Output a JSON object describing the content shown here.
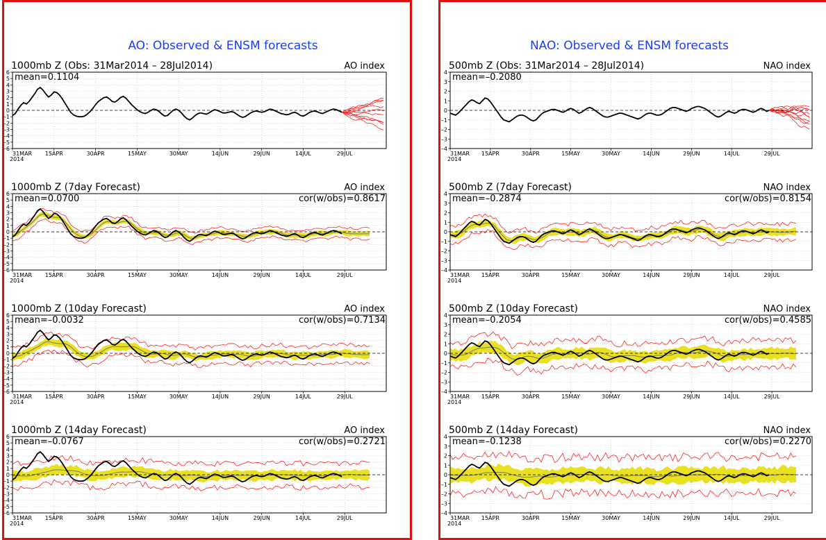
{
  "panels": [
    {
      "id": "ao",
      "title": "AO: Observed & ENSM forecasts",
      "y_ticks": [
        6,
        5,
        4,
        3,
        2,
        1,
        0,
        -1,
        -2,
        -3,
        -4,
        -5,
        -6
      ],
      "subplots": [
        {
          "label": "1000mb Z (Obs: 31Mar2014 – 28Jul2014)",
          "index": "AO index",
          "mean": "mean=0.1104",
          "cor": "",
          "kind": "obs"
        },
        {
          "label": "1000mb Z (7day Forecast)",
          "index": "AO index",
          "mean": "mean=0.0700",
          "cor": "cor(w/obs)=0.8617",
          "kind": "fc7"
        },
        {
          "label": "1000mb Z (10day Forecast)",
          "index": "AO index",
          "mean": "mean=–0.0032",
          "cor": "cor(w/obs)=0.7134",
          "kind": "fc10"
        },
        {
          "label": "1000mb Z (14day Forecast)",
          "index": "AO index",
          "mean": "mean=–0.0767",
          "cor": "cor(w/obs)=0.2721",
          "kind": "fc14"
        }
      ]
    },
    {
      "id": "nao",
      "title": "NAO: Observed & ENSM forecasts",
      "y_ticks": [
        4,
        3,
        2,
        1,
        0,
        -1,
        -2,
        -3,
        -4
      ],
      "subplots": [
        {
          "label": "500mb Z (Obs: 31Mar2014 – 28Jul2014)",
          "index": "NAO index",
          "mean": "mean=–0.2080",
          "cor": "",
          "kind": "obs"
        },
        {
          "label": "500mb Z (7day Forecast)",
          "index": "NAO index",
          "mean": "mean=–0.2874",
          "cor": "cor(w/obs)=0.8154",
          "kind": "fc7"
        },
        {
          "label": "500mb Z (10day Forecast)",
          "index": "NAO index",
          "mean": "mean=–0.2054",
          "cor": "cor(w/obs)=0.4585",
          "kind": "fc10"
        },
        {
          "label": "500mb Z (14day Forecast)",
          "index": "NAO index",
          "mean": "mean=–0.1238",
          "cor": "cor(w/obs)=0.2270",
          "kind": "fc14"
        }
      ]
    }
  ],
  "x_tick_labels": [
    "31MAR",
    "15APR",
    "30APR",
    "15MAY",
    "30MAY",
    "14JUN",
    "29JUN",
    "14JUL",
    "29JUL"
  ],
  "x_year": "2014",
  "colors": {
    "obs": "#000000",
    "ensemble": "#ff2020",
    "spread": "#e8e020",
    "mean_line": "#7a7a7a",
    "title": "#1a3cff",
    "frame": "#e01010"
  },
  "chart_data": [
    {
      "type": "line",
      "title": "AO: Observed & ENSM forecasts",
      "x_start": "2014-03-31",
      "x_step_days": 1,
      "ylim": [
        -6,
        6
      ],
      "observed": [
        -0.8,
        -0.5,
        0.2,
        0.8,
        1.2,
        1.0,
        1.4,
        2.0,
        2.6,
        3.3,
        3.6,
        3.2,
        2.6,
        2.1,
        2.4,
        2.9,
        2.8,
        2.4,
        1.8,
        1.1,
        0.4,
        -0.3,
        -0.7,
        -0.9,
        -1.0,
        -1.0,
        -0.9,
        -0.6,
        -0.2,
        0.3,
        0.9,
        1.4,
        1.7,
        2.0,
        2.1,
        1.8,
        1.4,
        1.3,
        1.6,
        2.0,
        2.2,
        1.9,
        1.4,
        0.9,
        0.5,
        0.1,
        -0.2,
        -0.4,
        -0.5,
        -0.3,
        0.0,
        0.2,
        0.1,
        -0.2,
        -0.6,
        -0.9,
        -0.8,
        -0.4,
        0.0,
        0.2,
        0.0,
        -0.4,
        -0.9,
        -1.3,
        -1.5,
        -1.2,
        -0.8,
        -0.5,
        -0.4,
        -0.5,
        -0.6,
        -0.4,
        -0.1,
        0.1,
        0.0,
        -0.2,
        -0.4,
        -0.4,
        -0.3,
        -0.2,
        -0.3,
        -0.6,
        -0.9,
        -1.1,
        -1.0,
        -0.7,
        -0.4,
        -0.2,
        -0.1,
        -0.2,
        -0.3,
        -0.2,
        0.0,
        0.2,
        0.1,
        -0.1,
        -0.3,
        -0.5,
        -0.6,
        -0.7,
        -0.6,
        -0.4,
        -0.3,
        -0.5,
        -0.8,
        -0.9,
        -0.7,
        -0.4,
        -0.2,
        -0.1,
        -0.2,
        -0.4,
        -0.5,
        -0.3,
        -0.1,
        0.1,
        0.2,
        0.1,
        -0.1,
        -0.3
      ]
    },
    {
      "type": "line",
      "title": "NAO: Observed & ENSM forecasts",
      "x_start": "2014-03-31",
      "x_step_days": 1,
      "ylim": [
        -4,
        4
      ],
      "observed": [
        -0.3,
        -0.4,
        -0.5,
        -0.3,
        0.0,
        0.3,
        0.6,
        0.9,
        1.1,
        1.0,
        0.8,
        0.7,
        1.0,
        1.3,
        1.2,
        0.9,
        0.5,
        0.1,
        -0.3,
        -0.7,
        -1.0,
        -1.1,
        -1.2,
        -1.0,
        -0.8,
        -0.6,
        -0.5,
        -0.5,
        -0.6,
        -0.8,
        -1.0,
        -1.1,
        -1.0,
        -0.7,
        -0.4,
        -0.2,
        -0.1,
        0.0,
        0.1,
        0.1,
        0.0,
        -0.1,
        -0.2,
        -0.1,
        0.1,
        0.2,
        0.1,
        -0.1,
        -0.3,
        -0.2,
        0.0,
        0.2,
        0.3,
        0.2,
        0.0,
        -0.2,
        -0.4,
        -0.6,
        -0.7,
        -0.7,
        -0.6,
        -0.5,
        -0.4,
        -0.3,
        -0.3,
        -0.4,
        -0.5,
        -0.6,
        -0.7,
        -0.8,
        -0.9,
        -0.8,
        -0.6,
        -0.4,
        -0.3,
        -0.3,
        -0.4,
        -0.5,
        -0.5,
        -0.4,
        -0.2,
        0.0,
        0.2,
        0.3,
        0.3,
        0.2,
        0.1,
        0.0,
        -0.1,
        0.0,
        0.2,
        0.3,
        0.4,
        0.4,
        0.3,
        0.2,
        0.0,
        -0.2,
        -0.4,
        -0.6,
        -0.7,
        -0.6,
        -0.4,
        -0.2,
        -0.1,
        -0.2,
        -0.3,
        -0.2,
        0.0,
        0.1,
        0.1,
        0.0,
        -0.1,
        -0.2,
        -0.1,
        0.1,
        0.2,
        0.1,
        -0.1,
        0.0
      ]
    }
  ]
}
